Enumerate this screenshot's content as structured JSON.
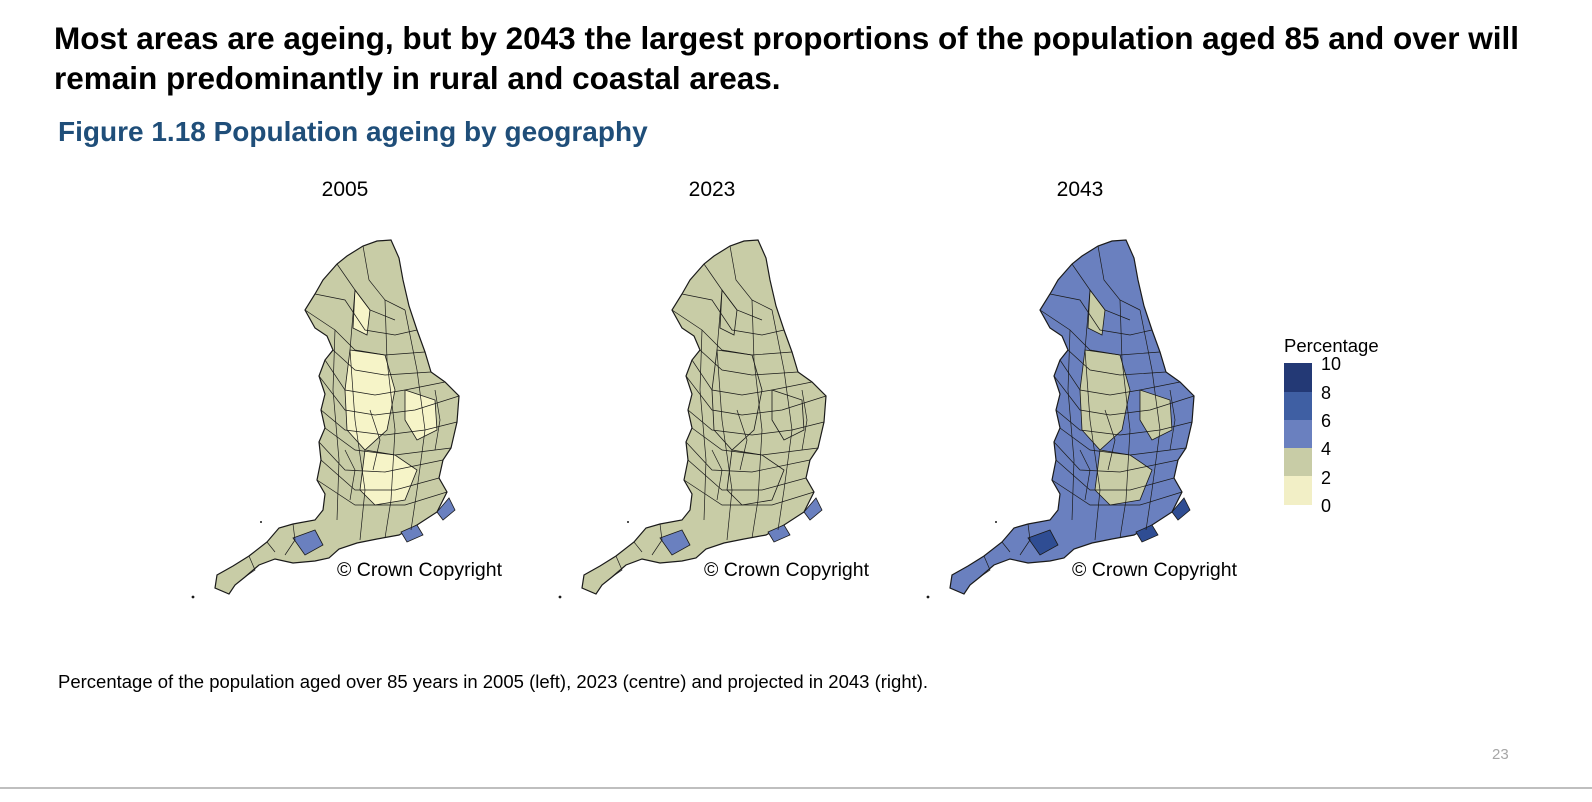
{
  "headline": "Most areas are ageing, but by 2043 the largest proportions of the population aged 85 and over will remain predominantly in rural and coastal areas.",
  "figure_title": "Figure 1.18 Population ageing by geography",
  "colors": {
    "title_blue": "#1f4e79",
    "band_0_2": "#f2efc6",
    "band_2_4": "#c8cca6",
    "band_4_6": "#6a80bf",
    "band_6_8": "#3f5fa3",
    "band_8_10": "#233975",
    "boundary": "#1a1a1a"
  },
  "maps": [
    {
      "year": "2005",
      "copyright": "© Crown Copyright",
      "base_color": "#c8cca6",
      "highlight_color": "#f6f4c8",
      "accent_color": "#6a80bf"
    },
    {
      "year": "2023",
      "copyright": "© Crown Copyright",
      "base_color": "#c8cca6",
      "highlight_color": "#c8cca6",
      "accent_color": "#6a80bf"
    },
    {
      "year": "2043",
      "copyright": "© Crown Copyright",
      "base_color": "#6a80bf",
      "highlight_color": "#c8cca6",
      "accent_color": "#2f4d93"
    }
  ],
  "legend": {
    "title": "Percentage",
    "labels": [
      "10",
      "8",
      "6",
      "4",
      "2",
      "0"
    ],
    "colors": [
      "#233975",
      "#3f5fa3",
      "#6a80bf",
      "#c8cca6",
      "#f2efc6"
    ]
  },
  "caption": "Percentage of the population aged over 85 years in 2005 (left), 2023 (centre) and projected in 2043 (right).",
  "page_number": "23"
}
